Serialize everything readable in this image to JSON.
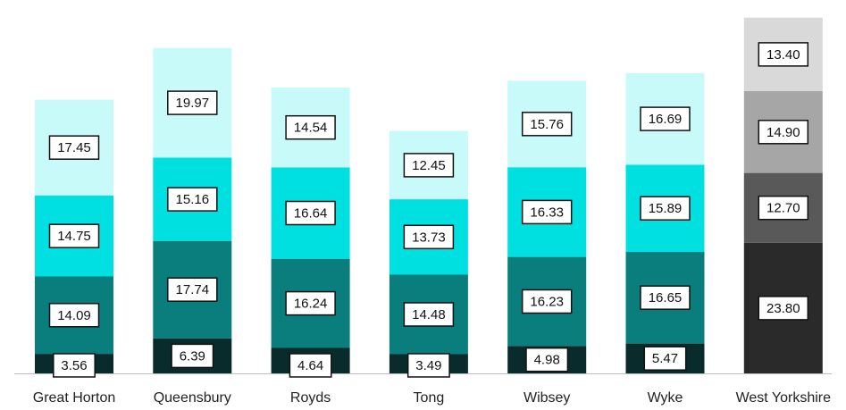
{
  "chart_data": {
    "type": "bar",
    "stacked": true,
    "categories": [
      "Great Horton",
      "Queensbury",
      "Royds",
      "Tong",
      "Wibsey",
      "Wyke",
      "West Yorkshire"
    ],
    "series": [
      {
        "values": [
          3.56,
          6.39,
          4.64,
          3.49,
          4.98,
          5.47,
          23.8
        ]
      },
      {
        "values": [
          14.09,
          17.74,
          16.24,
          14.48,
          16.23,
          16.65,
          12.7
        ]
      },
      {
        "values": [
          14.75,
          15.16,
          16.64,
          13.73,
          16.33,
          15.89,
          14.9
        ]
      },
      {
        "values": [
          17.45,
          19.97,
          14.54,
          12.45,
          15.76,
          16.69,
          13.4
        ]
      }
    ],
    "ylim": [
      0,
      65
    ],
    "grid": false,
    "legend": "none",
    "data_labels": true,
    "label_format": "2dp"
  },
  "colors": {
    "segments": [
      "#0a2b2b",
      "#0a7d7d",
      "#00e0e0",
      "#c8fafa"
    ],
    "highlight_segments": [
      "#2a2a2a",
      "#595959",
      "#a6a6a6",
      "#d9d9d9"
    ],
    "highlight_category": "West Yorkshire",
    "axis": "#bfbfbf"
  }
}
